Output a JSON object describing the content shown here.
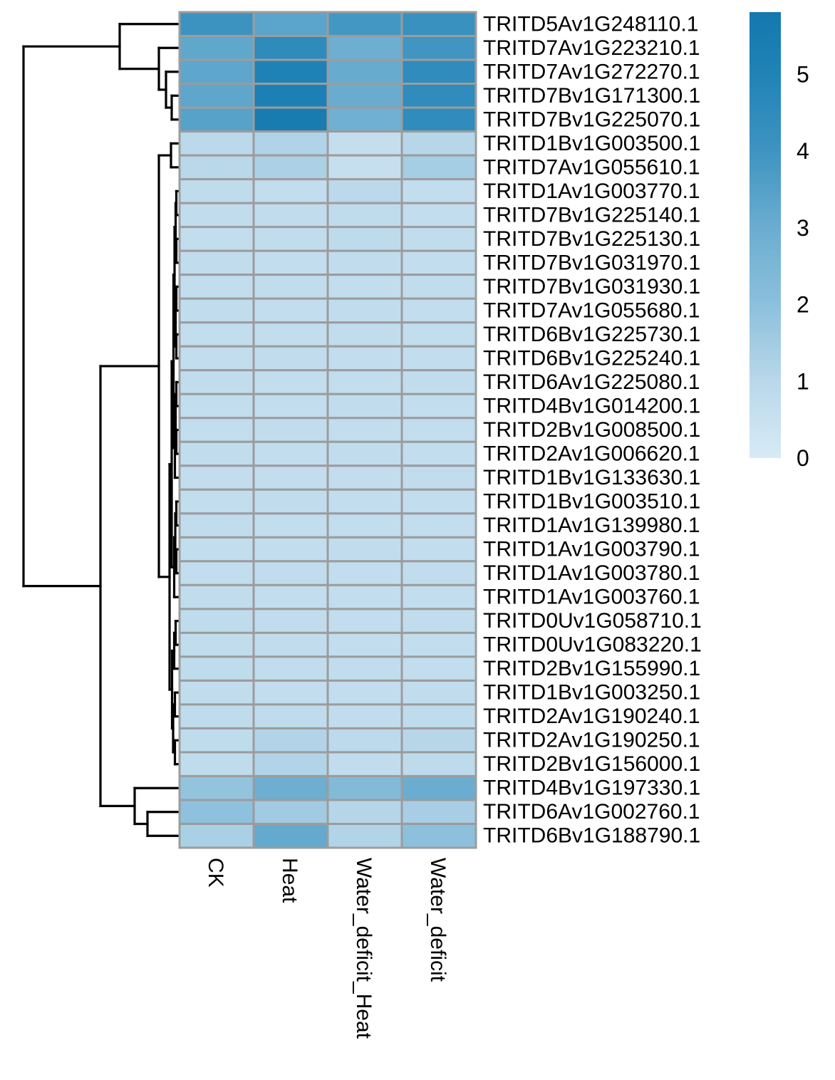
{
  "figure": {
    "kind": "clustered heatmap with row dendrogram and color legend",
    "background": "#ffffff"
  },
  "chart_data": {
    "type": "heatmap",
    "columns": [
      "CK",
      "Heat",
      "Water_deficit_Heat",
      "Water_deficit"
    ],
    "rows": [
      "TRITD5Av1G248110.1",
      "TRITD7Av1G223210.1",
      "TRITD7Av1G272270.1",
      "TRITD7Bv1G171300.1",
      "TRITD7Bv1G225070.1",
      "TRITD1Bv1G003500.1",
      "TRITD7Av1G055610.1",
      "TRITD1Av1G003770.1",
      "TRITD7Bv1G225140.1",
      "TRITD7Bv1G225130.1",
      "TRITD7Bv1G031970.1",
      "TRITD7Bv1G031930.1",
      "TRITD7Av1G055680.1",
      "TRITD6Bv1G225730.1",
      "TRITD6Bv1G225240.1",
      "TRITD6Av1G225080.1",
      "TRITD4Bv1G014200.1",
      "TRITD2Bv1G008500.1",
      "TRITD2Av1G006620.1",
      "TRITD1Bv1G133630.1",
      "TRITD1Bv1G003510.1",
      "TRITD1Av1G139980.1",
      "TRITD1Av1G003790.1",
      "TRITD1Av1G003780.1",
      "TRITD1Av1G003760.1",
      "TRITD0Uv1G058710.1",
      "TRITD0Uv1G083220.1",
      "TRITD2Bv1G155990.1",
      "TRITD1Bv1G003250.1",
      "TRITD2Av1G190240.1",
      "TRITD2Av1G190250.1",
      "TRITD2Bv1G156000.1",
      "TRITD4Bv1G197330.1",
      "TRITD6Av1G002760.1",
      "TRITD6Bv1G188790.1"
    ],
    "values": [
      [
        4.05,
        3.35,
        3.9,
        4.2
      ],
      [
        3.25,
        4.55,
        2.9,
        3.95
      ],
      [
        3.3,
        5.05,
        3.1,
        4.5
      ],
      [
        3.3,
        5.2,
        3.05,
        4.45
      ],
      [
        3.45,
        5.5,
        2.85,
        4.5
      ],
      [
        0.95,
        1.2,
        0.65,
        1.05
      ],
      [
        1.0,
        1.3,
        0.6,
        1.45
      ],
      [
        0.8,
        0.7,
        0.95,
        0.7
      ],
      [
        0.75,
        0.75,
        0.8,
        0.7
      ],
      [
        0.7,
        0.75,
        0.85,
        0.75
      ],
      [
        0.75,
        0.7,
        0.75,
        0.7
      ],
      [
        0.7,
        0.75,
        0.7,
        0.75
      ],
      [
        0.75,
        0.7,
        0.75,
        0.7
      ],
      [
        0.7,
        0.7,
        0.75,
        0.7
      ],
      [
        0.7,
        0.75,
        0.7,
        0.7
      ],
      [
        0.75,
        0.7,
        0.7,
        0.75
      ],
      [
        0.7,
        0.7,
        0.75,
        0.7
      ],
      [
        0.7,
        0.75,
        0.7,
        0.7
      ],
      [
        0.75,
        0.7,
        0.75,
        0.7
      ],
      [
        0.7,
        0.7,
        0.7,
        0.75
      ],
      [
        0.7,
        0.75,
        0.7,
        0.7
      ],
      [
        0.75,
        0.7,
        0.7,
        0.7
      ],
      [
        0.7,
        0.7,
        0.75,
        0.7
      ],
      [
        0.7,
        0.75,
        0.7,
        0.75
      ],
      [
        0.75,
        0.7,
        0.7,
        0.7
      ],
      [
        0.8,
        0.75,
        0.7,
        0.75
      ],
      [
        0.75,
        0.75,
        0.7,
        0.7
      ],
      [
        0.8,
        0.75,
        0.75,
        0.7
      ],
      [
        0.75,
        0.7,
        0.7,
        0.75
      ],
      [
        0.8,
        0.8,
        0.75,
        0.8
      ],
      [
        0.8,
        1.15,
        0.9,
        1.05
      ],
      [
        0.8,
        1.15,
        0.75,
        0.85
      ],
      [
        1.85,
        2.95,
        2.3,
        3.0
      ],
      [
        1.95,
        1.55,
        1.1,
        1.4
      ],
      [
        1.35,
        3.15,
        1.15,
        2.0
      ]
    ],
    "legend": {
      "position": "right",
      "ticks": [
        "5",
        "4",
        "3",
        "2",
        "1",
        "0"
      ],
      "tick_values": [
        5,
        4,
        3,
        2,
        1,
        0
      ],
      "min": 0,
      "max": 5.81
    },
    "colormap": {
      "stops": [
        [
          0,
          "#d7eaf5"
        ],
        [
          1,
          "#b9d8ea"
        ],
        [
          2,
          "#8cc0dc"
        ],
        [
          3,
          "#6badd0"
        ],
        [
          4,
          "#3e94c1"
        ],
        [
          5,
          "#2083b6"
        ],
        [
          5.81,
          "#1578ae"
        ]
      ]
    },
    "grid_color": "#9c9c9c",
    "dendrogram_color": "#000000",
    "row_dendrogram": [
      33,
      [
        168,
        0,
        [
          223,
          1,
          [
            233,
            2,
            [
              241,
              3,
              4
            ]
          ]
        ]
      ],
      [
        141,
        [
          223,
          [
            240,
            5,
            6
          ],
          [
            238,
            [
              241,
              [
                243.5,
                [
                  245,
                  [
                    246.5,
                    [
                      247.5,
                      7,
                      8
                    ],
                    [
                      247.5,
                      9,
                      10
                    ]
                  ],
                  [
                    246.5,
                    [
                      247.5,
                      11,
                      12
                    ],
                    [
                      247.5,
                      13,
                      14
                    ]
                  ]
                ],
                [
                  245.5,
                  [
                    246.5,
                    [
                      247.5,
                      15,
                      16
                    ],
                    [
                      247.5,
                      17,
                      18
                    ]
                  ],
                  19
                ]
              ],
              [
                244.5,
                [
                  246,
                  [
                    247.5,
                    20,
                    21
                  ],
                  [
                    247.5,
                    22,
                    23
                  ]
                ],
                24
              ]
            ],
            [
              241.5,
              [
                244.5,
                [
                  246.5,
                  25,
                  26
                ],
                27
              ],
              [
                243,
                [
                  245.5,
                  28,
                  29
                ],
                [
                  245.5,
                  30,
                  31
                ]
              ]
            ]
          ]
        ],
        [
          189,
          32,
          [
            207,
            33,
            34
          ]
        ]
      ]
    ]
  }
}
